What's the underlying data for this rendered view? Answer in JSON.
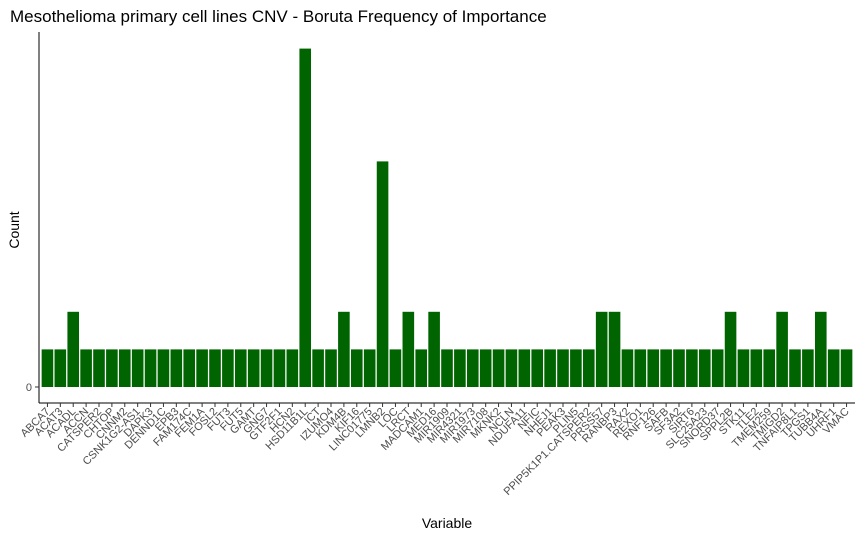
{
  "chart_data": {
    "type": "bar",
    "title": "Mesothelioma primary cell lines CNV  - Boruta Frequency of Importance",
    "xlabel": "Variable",
    "ylabel": "Count",
    "bar_color": "#006400",
    "y_ticks": [
      0
    ],
    "ylim": [
      0,
      9
    ],
    "grid": false,
    "categories": [
      "ABCA7",
      "ACAT3",
      "ACADL",
      "ACCN",
      "CATSPER2",
      "CHTOP",
      "CNNM2",
      "CSNK1G2-AS1",
      "DAPK3",
      "DENND1C",
      "EPB3",
      "FAM174C",
      "FEM1A",
      "FOSL2",
      "FUT3",
      "FUT5",
      "GAMT",
      "GNG7",
      "GTF2F1",
      "HCN2",
      "HSD11B1L",
      "ICT",
      "IZUMO4",
      "KDM4B",
      "KIF16",
      "LINC01775",
      "LMNB2",
      "LOC",
      "LRCT",
      "MADCAM1",
      "MED16",
      "MIR1909",
      "MIR4321",
      "MIR1973",
      "MIR7108",
      "MKNK2",
      "NCLN",
      "NDUFA11",
      "NFIC",
      "NHEJ1",
      "PEAK3",
      "PLIN5",
      "PPIP5K1P1.CATSPER2",
      "PRSS57",
      "RANBP3",
      "RAX2",
      "REXO1",
      "RNF126",
      "SAFB",
      "SF3A2",
      "SIRT6",
      "SLC25A23",
      "SNORD37",
      "SPPL2B",
      "STK11",
      "TLE2",
      "TMEM259",
      "TMIGD2",
      "TNFAIP8L1",
      "TPGS1",
      "TUBB4A",
      "UHRF1",
      "VMAC"
    ],
    "values": [
      1,
      1,
      2,
      1,
      1,
      1,
      1,
      1,
      1,
      1,
      1,
      1,
      1,
      1,
      1,
      1,
      1,
      1,
      1,
      1,
      9,
      1,
      1,
      2,
      1,
      1,
      6,
      1,
      2,
      1,
      2,
      1,
      1,
      1,
      1,
      1,
      1,
      1,
      1,
      1,
      1,
      1,
      1,
      2,
      2,
      1,
      1,
      1,
      1,
      1,
      1,
      1,
      1,
      2,
      1,
      1,
      1,
      2,
      1,
      1,
      2,
      1,
      1
    ]
  }
}
